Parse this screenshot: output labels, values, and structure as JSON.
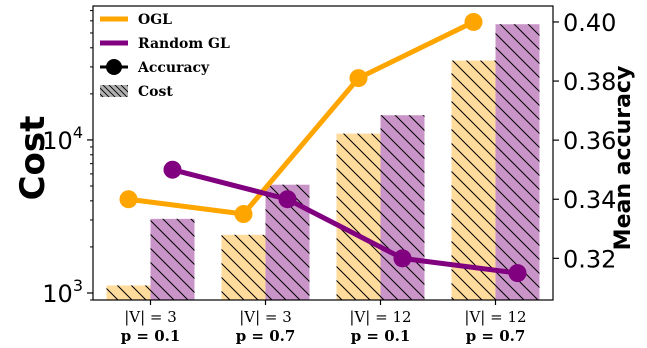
{
  "chart_data": {
    "type": "bar",
    "categories": [
      [
        "|V| = 3",
        "p = 0.1"
      ],
      [
        "|V| = 3",
        "p = 0.7"
      ],
      [
        "|V| = 12",
        "p = 0.1"
      ],
      [
        "|V| = 12",
        "p = 0.7"
      ]
    ],
    "ylabel_left": "Cost",
    "ylabel_right": "Mean accuracy",
    "y_left": {
      "scale": "log",
      "range": [
        900,
        75000
      ],
      "ticks": [
        1000,
        10000
      ],
      "tick_labels": [
        [
          "10",
          "3"
        ],
        [
          "10",
          "4"
        ]
      ]
    },
    "y_right": {
      "scale": "linear",
      "range": [
        0.3059,
        0.4054
      ],
      "ticks": [
        0.32,
        0.34,
        0.36,
        0.38,
        0.4
      ],
      "tick_labels": [
        "0.32",
        "0.34",
        "0.36",
        "0.38",
        "0.40"
      ]
    },
    "bar_series": [
      {
        "name": "OGL",
        "axis": "left",
        "values": [
          1120,
          2400,
          11000,
          33000
        ]
      },
      {
        "name": "Random GL",
        "axis": "left",
        "values": [
          3050,
          5100,
          14500,
          57000
        ]
      }
    ],
    "line_series": [
      {
        "name": "OGL",
        "axis": "right",
        "values": [
          0.34,
          0.335,
          0.381,
          0.4
        ]
      },
      {
        "name": "Random GL",
        "axis": "right",
        "values": [
          0.35,
          0.34,
          0.32,
          0.315
        ]
      }
    ],
    "colors": {
      "ogl": "#ffa500",
      "ogl_bar": "#ffdb9c",
      "random": "#800080",
      "random_bar": "#c994c7"
    },
    "legend": {
      "placement": "top-left",
      "entries": [
        {
          "label": "OGL",
          "kind": "line",
          "color": "#ffa500"
        },
        {
          "label": "Random GL",
          "kind": "line",
          "color": "#800080"
        },
        {
          "label": "Accuracy",
          "kind": "marker-line",
          "color": "#000000"
        },
        {
          "label": "Cost",
          "kind": "hatch",
          "color": "#b0b0b0"
        }
      ]
    },
    "grid": false
  }
}
